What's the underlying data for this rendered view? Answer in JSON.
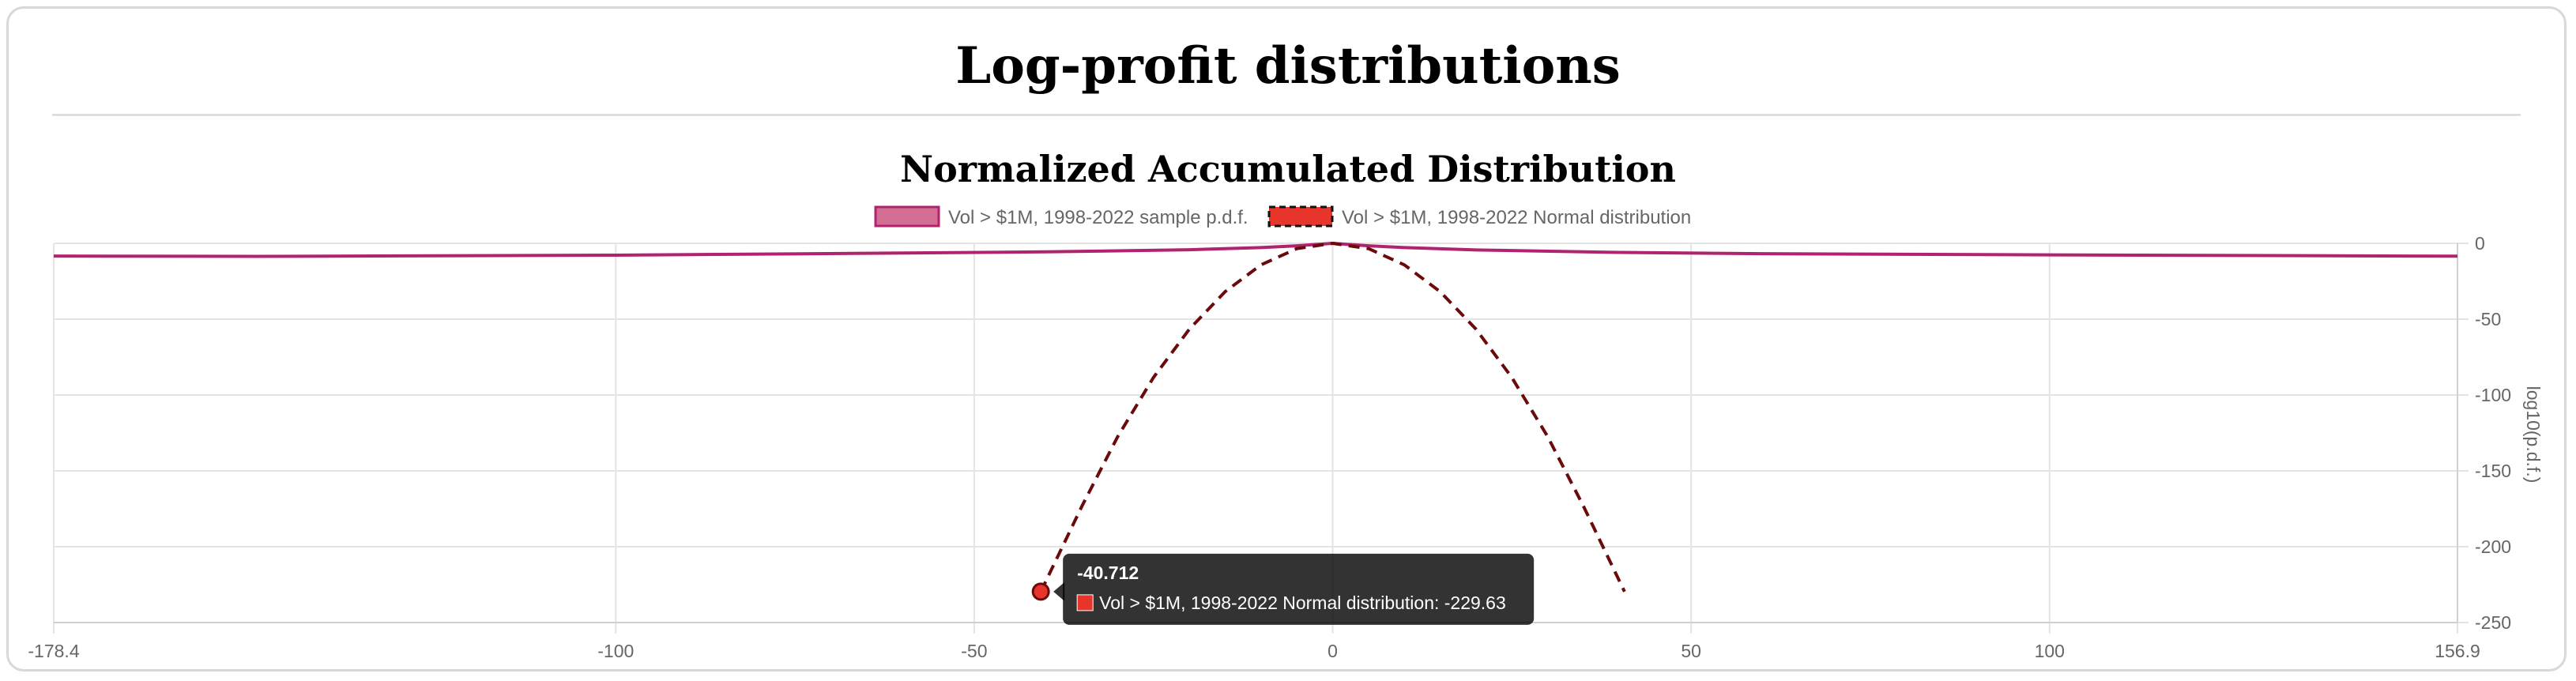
{
  "page": {
    "title": "Log-profit distributions"
  },
  "chart_data": {
    "type": "line",
    "title": "Normalized Accumulated Distribution",
    "xlabel": "",
    "ylabel": "log10(p.d.f.)",
    "xlim": [
      -178.4,
      156.9
    ],
    "ylim": [
      -250,
      0
    ],
    "x_ticks": [
      "-178.4",
      "-100",
      "-50",
      "0",
      "50",
      "100",
      "156.9"
    ],
    "y_ticks": [
      "0",
      "-50",
      "-100",
      "-150",
      "-200",
      "-250"
    ],
    "y_axis_position": "right",
    "legend_position": "top",
    "grid": true,
    "series": [
      {
        "name": "Vol > $1M, 1998-2022 sample p.d.f.",
        "color": "#b0246f",
        "fill": "#d36e93",
        "style": "solid",
        "x": [
          -178.4,
          -150,
          -100,
          -60,
          -40,
          -20,
          -10,
          -5,
          0,
          5,
          10,
          20,
          40,
          60,
          100,
          150,
          156.9
        ],
        "y": [
          -8.4,
          -8.6,
          -7.8,
          -6.4,
          -5.6,
          -4.2,
          -2.8,
          -1.6,
          0,
          -1.6,
          -2.8,
          -4.4,
          -6.0,
          -6.8,
          -7.6,
          -8.4,
          -8.5
        ]
      },
      {
        "name": "Vol > $1M, 1998-2022 Normal distribution",
        "color": "#6b0a0a",
        "fill": "#e8352b",
        "style": "dashed",
        "x": [
          -40.712,
          -35,
          -30,
          -25,
          -20,
          -15,
          -10,
          -5,
          0,
          5,
          10,
          15,
          20,
          25,
          30,
          35,
          40.712
        ],
        "y": [
          -229.63,
          -173.5,
          -127.5,
          -88.5,
          -56.6,
          -31.9,
          -14.2,
          -3.5,
          0,
          -3.5,
          -14.2,
          -31.9,
          -56.6,
          -88.5,
          -127.5,
          -173.5,
          -229.63
        ]
      }
    ],
    "tooltip": {
      "title": "-40.712",
      "label": "Vol > $1M, 1998-2022 Normal distribution: -229.63",
      "series_index": 1,
      "point_index": 0
    }
  }
}
